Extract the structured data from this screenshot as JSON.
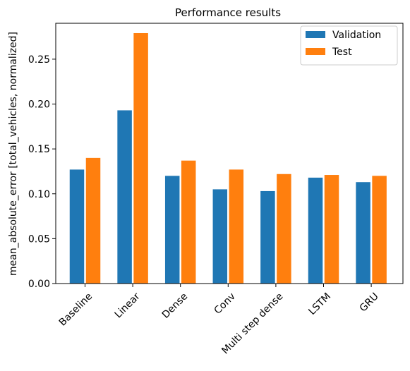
{
  "chart_data": {
    "type": "bar",
    "title": "Performance results",
    "xlabel": "",
    "ylabel": "mean_absolute_error [total_vehicles, normalized]",
    "categories": [
      "Baseline",
      "Linear",
      "Dense",
      "Conv",
      "Multi step dense",
      "LSTM",
      "GRU"
    ],
    "series": [
      {
        "name": "Validation",
        "color": "#1f77b4",
        "values": [
          0.127,
          0.193,
          0.12,
          0.105,
          0.103,
          0.118,
          0.113
        ]
      },
      {
        "name": "Test",
        "color": "#ff7f0e",
        "values": [
          0.14,
          0.279,
          0.137,
          0.127,
          0.122,
          0.121,
          0.12
        ]
      }
    ],
    "ylim": [
      0,
      0.29
    ],
    "yticks": [
      "0.00",
      "0.05",
      "0.10",
      "0.15",
      "0.20",
      "0.25"
    ],
    "grid": false,
    "legend_position": "top-right",
    "xtick_rotation": 45
  }
}
